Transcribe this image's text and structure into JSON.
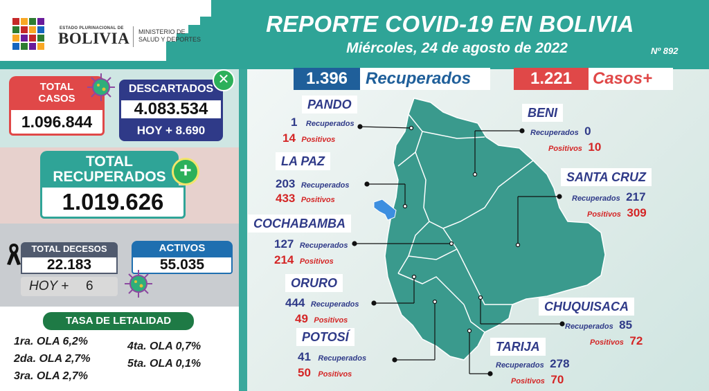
{
  "header": {
    "title": "REPORTE COVID-19 EN BOLIVIA",
    "date": "Miércoles, 24 de agosto de 2022",
    "report_number": "Nº 892"
  },
  "logo": {
    "small_text": "ESTADO PLURINACIONAL DE",
    "name": "BOLIVIA",
    "ministry_line1": "MINISTERIO DE",
    "ministry_line2": "SALUD Y DEPORTES"
  },
  "totals": {
    "total_casos_line1": "TOTAL",
    "total_casos_line2": "CASOS",
    "total_casos_value": "1.096.844",
    "descartados_label": "DESCARTADOS",
    "descartados_value": "4.083.534",
    "descartados_hoy": "HOY + 8.690",
    "recuperados_line1": "TOTAL",
    "recuperados_line2": "RECUPERADOS",
    "recuperados_value": "1.019.626",
    "decesos_label": "TOTAL DECESOS",
    "decesos_value": "22.183",
    "decesos_hoy_label": "HOY +",
    "decesos_hoy_value": "6",
    "activos_label": "ACTIVOS",
    "activos_value": "55.035"
  },
  "tasa": {
    "title": "TASA DE LETALIDAD",
    "olas": [
      "1ra. OLA 6,2%",
      "2da. OLA 2,7%",
      "3ra. OLA 2,7%",
      "4ta. OLA 0,7%",
      "5ta. OLA 0,1%"
    ]
  },
  "summary": {
    "recuperados_value": "1.396",
    "recuperados_label": "Recuperados",
    "casos_value": "1.221",
    "casos_label": "Casos+"
  },
  "labels": {
    "recuperados": "Recuperados",
    "positivos": "Positivos"
  },
  "departments": {
    "pando": {
      "name": "PANDO",
      "recuperados": "1",
      "positivos": "14"
    },
    "beni": {
      "name": "BENI",
      "recuperados": "0",
      "positivos": "10"
    },
    "la_paz": {
      "name": "LA PAZ",
      "recuperados": "203",
      "positivos": "433"
    },
    "santa_cruz": {
      "name": "SANTA CRUZ",
      "recuperados": "217",
      "positivos": "309"
    },
    "cochabamba": {
      "name": "COCHABAMBA",
      "recuperados": "127",
      "positivos": "214"
    },
    "oruro": {
      "name": "ORURO",
      "recuperados": "444",
      "positivos": "49"
    },
    "chuquisaca": {
      "name": "CHUQUISACA",
      "recuperados": "85",
      "positivos": "72"
    },
    "potosi": {
      "name": "POTOSÍ",
      "recuperados": "41",
      "positivos": "50"
    },
    "tarija": {
      "name": "TARIJA",
      "recuperados": "278",
      "positivos": "70"
    }
  },
  "colors": {
    "teal": "#2fa497",
    "red": "#e04848",
    "navy": "#2f3a88",
    "blue": "#1f5f9a",
    "map": "#3a9a8d"
  }
}
